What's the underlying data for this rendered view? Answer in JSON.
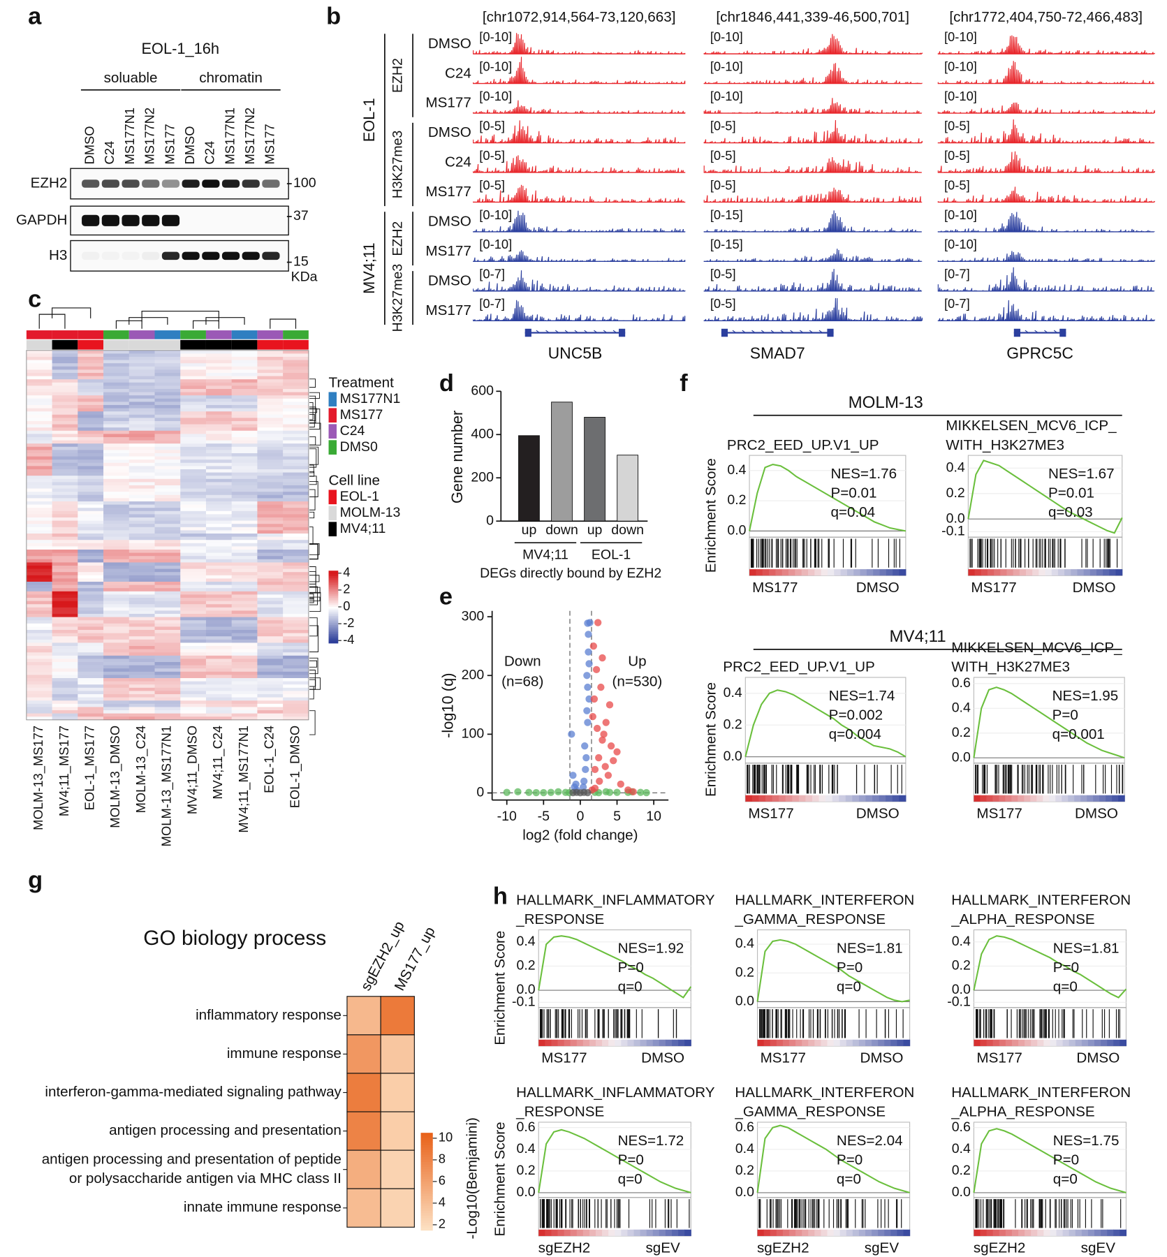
{
  "panel_labels": [
    "a",
    "b",
    "c",
    "d",
    "e",
    "f",
    "g",
    "h"
  ],
  "blot": {
    "title": "EOL-1_16h",
    "fractions": [
      "soluable",
      "chromatin"
    ],
    "lanes": [
      "DMSO",
      "C24",
      "MS177N1",
      "MS177N2",
      "MS177",
      "DMSO",
      "C24",
      "MS177N1",
      "MS177N2",
      "MS177"
    ],
    "proteins": [
      "EZH2",
      "GAPDH",
      "H3"
    ],
    "markers": [
      "100",
      "37",
      "15"
    ],
    "marker_unit": "KDa"
  },
  "tracks": {
    "regions": [
      "[chr1072,914,564-73,120,663]",
      "[chr1846,441,339-46,500,701]",
      "[chr1772,404,750-72,466,483]"
    ],
    "genes": [
      "UNC5B",
      "SMAD7",
      "GPRC5C"
    ],
    "groups": [
      {
        "cell_line": "EOL-1",
        "color": "#e8262b",
        "marks": [
          {
            "name": "EZH2",
            "rows": [
              {
                "label": "DMSO",
                "ranges": [
                  "[0-10]",
                  "[0-10]",
                  "[0-10]"
                ]
              },
              {
                "label": "C24",
                "ranges": [
                  "[0-10]",
                  "[0-10]",
                  "[0-10]"
                ]
              },
              {
                "label": "MS177",
                "ranges": [
                  "[0-10]",
                  "[0-10]",
                  "[0-10]"
                ]
              }
            ]
          },
          {
            "name": "H3K27me3",
            "rows": [
              {
                "label": "DMSO",
                "ranges": [
                  "[0-5]",
                  "[0-5]",
                  "[0-5]"
                ]
              },
              {
                "label": "C24",
                "ranges": [
                  "[0-5]",
                  "[0-5]",
                  "[0-5]"
                ]
              },
              {
                "label": "MS177",
                "ranges": [
                  "[0-5]",
                  "[0-5]",
                  "[0-5]"
                ]
              }
            ]
          }
        ]
      },
      {
        "cell_line": "MV4;11",
        "color": "#2b3f9e",
        "marks": [
          {
            "name": "EZH2",
            "rows": [
              {
                "label": "DMSO",
                "ranges": [
                  "[0-10]",
                  "[0-15]",
                  "[0-10]"
                ]
              },
              {
                "label": "MS177",
                "ranges": [
                  "[0-10]",
                  "[0-15]",
                  "[0-10]"
                ]
              }
            ]
          },
          {
            "name": "H3K27me3",
            "rows": [
              {
                "label": "DMSO",
                "ranges": [
                  "[0-7]",
                  "[0-5]",
                  "[0-7]"
                ]
              },
              {
                "label": "MS177",
                "ranges": [
                  "[0-7]",
                  "[0-5]",
                  "[0-7]"
                ]
              }
            ]
          }
        ]
      }
    ]
  },
  "clustermap": {
    "samples": [
      "MOLM-13_MS177",
      "MV4;11_MS177",
      "EOL-1_MS177",
      "MOLM-13_DMSO",
      "MOLM-13_C24",
      "MOLM-13_MS177N1",
      "MV4;11_DMSO",
      "MV4;11_C24",
      "MV4;11_MS177N1",
      "EOL-1_C24",
      "EOL-1_DMSO"
    ],
    "treatment_title": "Treatment",
    "treatments": [
      "MS177N1",
      "MS177",
      "C24",
      "DMS0"
    ],
    "treatment_colors": [
      "#2f7fc1",
      "#e31a2c",
      "#9b59b6",
      "#3aaa35"
    ],
    "cell_line_title": "Cell line",
    "cell_lines": [
      "EOL-1",
      "MOLM-13",
      "MV4;11"
    ],
    "cell_line_colors": [
      "#e8141e",
      "#d9d9d9",
      "#000000"
    ],
    "scale_ticks": [
      4,
      2,
      0,
      -2,
      -4
    ]
  },
  "gsea_groups": [
    "MOLM-13",
    "MV4;11"
  ],
  "chart_data": [
    {
      "type": "bar",
      "ylabel": "Gene number",
      "xlabel": "DEGs directly bound by EZH2",
      "categories": [
        "up",
        "down",
        "up",
        "down"
      ],
      "groups": [
        "MV4;11",
        "EOL-1"
      ],
      "values": [
        395,
        550,
        480,
        305
      ],
      "colors": [
        "#231f20",
        "#9d9d9d",
        "#6d6e70",
        "#d5d5d5"
      ],
      "ylim": [
        0,
        600
      ],
      "yticks": [
        0,
        200,
        400,
        600
      ]
    },
    {
      "type": "scatter",
      "xlabel": "log2 (fold change)",
      "ylabel": "-log10 (q)",
      "annotations": [
        [
          "Down",
          "(n=68)"
        ],
        [
          "Up",
          "(n=530)"
        ]
      ],
      "xlim": [
        -12,
        12
      ],
      "ylim": [
        -12,
        310
      ],
      "xticks": [
        -10,
        -5,
        0,
        5,
        10
      ],
      "yticks": [
        0,
        100,
        200,
        300
      ],
      "series": [
        {
          "color": "#5cb85c",
          "x": [
            -10,
            -8.5,
            -6,
            -4,
            -3,
            -2,
            -1.5,
            2,
            2.5,
            3.5,
            5,
            6.5,
            7,
            8.2,
            9,
            -7,
            4,
            -5
          ],
          "y": [
            1,
            2,
            0.5,
            1,
            2,
            1,
            0.5,
            1,
            0.5,
            2,
            1,
            1,
            2,
            1,
            0.5,
            1,
            1,
            0.5
          ]
        },
        {
          "color": "#5b7fd1",
          "x": [
            -1.2,
            -0.8,
            -0.5,
            -1,
            0.5,
            0.8,
            1,
            1.2,
            0.9,
            1.1,
            0.6,
            1.3,
            0.7,
            1,
            1.2,
            0.4,
            1.1,
            0.9,
            -0.6,
            1
          ],
          "y": [
            100,
            10,
            5,
            30,
            20,
            60,
            120,
            160,
            200,
            240,
            80,
            290,
            40,
            180,
            220,
            10,
            270,
            140,
            15,
            289
          ]
        },
        {
          "color": "#e84a4a",
          "x": [
            1.6,
            2,
            2.5,
            3,
            3.5,
            4,
            5,
            2.2,
            3.2,
            4.5,
            2.8,
            1.8,
            3.8,
            2.4,
            6.5,
            7.2,
            1.7,
            2.6,
            3,
            4.2,
            5.5,
            2,
            2.3,
            1.9,
            3.4
          ],
          "y": [
            5,
            40,
            60,
            90,
            120,
            150,
            70,
            210,
            100,
            55,
            180,
            250,
            30,
            290,
            5,
            2,
            130,
            20,
            230,
            80,
            15,
            8,
            110,
            160,
            45
          ]
        },
        {
          "color": "#555555",
          "x": [
            -1,
            -0.5,
            0,
            0.5,
            1
          ],
          "y": [
            0.5,
            1,
            0.3,
            1,
            0.5
          ]
        }
      ]
    },
    {
      "type": "line",
      "title": [
        "PRC2_EED_UP.V1_UP"
      ],
      "annotations": [
        "NES=1.76",
        "P=0.01",
        "q=0.04"
      ],
      "ylabel": "Enrichment Score",
      "x_labels": [
        "MS177",
        "DMSO"
      ],
      "color": "#6abf3c",
      "ylim": [
        -0.03,
        0.5
      ],
      "yticks": [
        {
          "value": 0,
          "label": "0.0"
        },
        0.2,
        0.4
      ],
      "values": [
        0,
        0.25,
        0.42,
        0.44,
        0.43,
        0.4,
        0.36,
        0.33,
        0.3,
        0.27,
        0.24,
        0.21,
        0.18,
        0.15,
        0.12,
        0.09,
        0.06,
        0.04,
        0.02,
        0.01,
        0
      ]
    },
    {
      "type": "line",
      "title": [
        "MIKKELSEN_MCV6_ICP_",
        "WITH_H3K27ME3"
      ],
      "annotations": [
        "NES=1.67",
        "P=0.01",
        "q=0.03"
      ],
      "x_labels": [
        "MS177",
        "DMSO"
      ],
      "color": "#6abf3c",
      "ylim": [
        -0.13,
        0.5
      ],
      "yticks": [
        -0.1,
        {
          "value": 0,
          "label": "0.0"
        },
        0.2,
        0.4
      ],
      "values": [
        0,
        0.35,
        0.46,
        0.44,
        0.42,
        0.38,
        0.34,
        0.3,
        0.26,
        0.22,
        0.18,
        0.14,
        0.1,
        0.06,
        0.03,
        0,
        -0.03,
        -0.06,
        -0.09,
        -0.11,
        0.01
      ]
    },
    {
      "type": "line",
      "title": [
        "PRC2_EED_UP.V1_UP"
      ],
      "annotations": [
        "NES=1.74",
        "P=0.002",
        "q=0.004"
      ],
      "ylabel": "Enrichment Score",
      "x_labels": [
        "MS177",
        "DMSO"
      ],
      "color": "#6abf3c",
      "ylim": [
        -0.03,
        0.5
      ],
      "yticks": [
        {
          "value": 0,
          "label": "0.0"
        },
        0.2,
        0.4
      ],
      "values": [
        0,
        0.2,
        0.33,
        0.4,
        0.42,
        0.41,
        0.39,
        0.36,
        0.33,
        0.3,
        0.27,
        0.24,
        0.2,
        0.17,
        0.13,
        0.1,
        0.07,
        0.06,
        0.05,
        0.03,
        0
      ]
    },
    {
      "type": "line",
      "title": [
        "MIKKELSEN_MCV6_ICP_",
        "WITH_H3K27ME3"
      ],
      "annotations": [
        "NES=1.95",
        "P=0",
        "q=0.001"
      ],
      "x_labels": [
        "MS177",
        "DMSO"
      ],
      "color": "#6abf3c",
      "ylim": [
        -0.03,
        0.65
      ],
      "yticks": [
        {
          "value": 0,
          "label": "0.0"
        },
        0.2,
        0.4,
        0.6
      ],
      "values": [
        0,
        0.4,
        0.55,
        0.57,
        0.55,
        0.52,
        0.48,
        0.44,
        0.4,
        0.36,
        0.32,
        0.28,
        0.24,
        0.2,
        0.16,
        0.12,
        0.09,
        0.06,
        0.04,
        0.02,
        0
      ]
    },
    {
      "type": "line",
      "title": [
        "HALLMARK_INFLAMMATORY",
        "_RESPONSE"
      ],
      "annotations": [
        "NES=1.92",
        "P=0",
        "q=0"
      ],
      "ylabel": "Enrichment Score",
      "x_labels": [
        "MS177",
        "DMSO"
      ],
      "color": "#6abf3c",
      "ylim": [
        -0.13,
        0.5
      ],
      "yticks": [
        -0.1,
        {
          "value": 0,
          "label": "0.0"
        },
        0.2,
        0.4
      ],
      "values": [
        0,
        0.38,
        0.44,
        0.45,
        0.44,
        0.42,
        0.39,
        0.36,
        0.33,
        0.3,
        0.27,
        0.24,
        0.2,
        0.17,
        0.13,
        0.1,
        0.06,
        0.02,
        -0.02,
        -0.06,
        0.03
      ]
    },
    {
      "type": "line",
      "title": [
        "HALLMARK_INTERFERON",
        "_GAMMA_RESPONSE"
      ],
      "annotations": [
        "NES=1.81",
        "P=0",
        "q=0"
      ],
      "x_labels": [
        "MS177",
        "DMSO"
      ],
      "color": "#6abf3c",
      "ylim": [
        -0.03,
        0.5
      ],
      "yticks": [
        {
          "value": 0,
          "label": "0.0"
        },
        0.2,
        0.4
      ],
      "values": [
        0,
        0.35,
        0.42,
        0.43,
        0.42,
        0.4,
        0.37,
        0.34,
        0.31,
        0.28,
        0.25,
        0.22,
        0.18,
        0.15,
        0.12,
        0.09,
        0.06,
        0.03,
        0.01,
        0,
        0.01
      ]
    },
    {
      "type": "line",
      "title": [
        "HALLMARK_INTERFERON",
        "_ALPHA_RESPONSE"
      ],
      "annotations": [
        "NES=1.81",
        "P=0",
        "q=0"
      ],
      "x_labels": [
        "MS177",
        "DMSO"
      ],
      "color": "#6abf3c",
      "ylim": [
        -0.13,
        0.5
      ],
      "yticks": [
        -0.1,
        {
          "value": 0,
          "label": "0.0"
        },
        0.2,
        0.4
      ],
      "values": [
        0,
        0.3,
        0.42,
        0.45,
        0.44,
        0.42,
        0.39,
        0.36,
        0.33,
        0.3,
        0.27,
        0.23,
        0.2,
        0.16,
        0.13,
        0.09,
        0.05,
        0.01,
        -0.03,
        -0.06,
        0.01
      ]
    },
    {
      "type": "line",
      "title": [
        "HALLMARK_INFLAMMATORY",
        "_RESPONSE"
      ],
      "annotations": [
        "NES=1.72",
        "P=0",
        "q=0"
      ],
      "ylabel": "Enrichment Score",
      "x_labels": [
        "sgEZH2",
        "sgEV"
      ],
      "color": "#6abf3c",
      "ylim": [
        -0.03,
        0.65
      ],
      "yticks": [
        {
          "value": 0,
          "label": "0.0"
        },
        0.2,
        0.4,
        0.6
      ],
      "values": [
        0,
        0.45,
        0.56,
        0.58,
        0.56,
        0.53,
        0.5,
        0.46,
        0.42,
        0.38,
        0.34,
        0.3,
        0.26,
        0.22,
        0.18,
        0.14,
        0.1,
        0.07,
        0.04,
        0.02,
        0
      ]
    },
    {
      "type": "line",
      "title": [
        "HALLMARK_INTERFERON",
        "_GAMMA_RESPONSE"
      ],
      "annotations": [
        "NES=2.04",
        "P=0",
        "q=0"
      ],
      "x_labels": [
        "sgEZH2",
        "sgEV"
      ],
      "color": "#6abf3c",
      "ylim": [
        -0.03,
        0.65
      ],
      "yticks": [
        {
          "value": 0,
          "label": "0.0"
        },
        0.2,
        0.4,
        0.6
      ],
      "values": [
        0,
        0.5,
        0.6,
        0.62,
        0.6,
        0.56,
        0.52,
        0.48,
        0.44,
        0.4,
        0.35,
        0.3,
        0.26,
        0.22,
        0.18,
        0.14,
        0.1,
        0.07,
        0.04,
        0.02,
        0
      ]
    },
    {
      "type": "line",
      "title": [
        "HALLMARK_INTERFERON",
        "_ALPHA_RESPONSE"
      ],
      "annotations": [
        "NES=1.75",
        "P=0",
        "q=0"
      ],
      "x_labels": [
        "sgEZH2",
        "sgEV"
      ],
      "color": "#6abf3c",
      "ylim": [
        -0.03,
        0.65
      ],
      "yticks": [
        {
          "value": 0,
          "label": "0.0"
        },
        0.2,
        0.4,
        0.6
      ],
      "values": [
        0,
        0.45,
        0.57,
        0.59,
        0.57,
        0.54,
        0.5,
        0.46,
        0.42,
        0.38,
        0.34,
        0.3,
        0.26,
        0.22,
        0.18,
        0.14,
        0.1,
        0.07,
        0.04,
        0.02,
        0
      ]
    },
    {
      "type": "heatmap",
      "title": "GO biology process",
      "columns": [
        "sgEZH2_up",
        "MS177_up"
      ],
      "rows": [
        [
          "inflammatory response"
        ],
        [
          "immune response"
        ],
        [
          "interferon-gamma-mediated signaling pathway"
        ],
        [
          "antigen processing and presentation"
        ],
        [
          "antigen processing and presentation of peptide",
          "or polysaccharide antigen via MHC class II"
        ],
        [
          "innate immune response"
        ]
      ],
      "values": [
        [
          4.5,
          8.8
        ],
        [
          6.8,
          3.5
        ],
        [
          8.6,
          3.0
        ],
        [
          8.2,
          3.0
        ],
        [
          5.2,
          2.6
        ],
        [
          4.2,
          2.6
        ]
      ],
      "colorbar_label": "-Log10(Bemjamini)",
      "colorbar_ticks": [
        10,
        8,
        6,
        4,
        2
      ],
      "clim": [
        1.5,
        10.5
      ],
      "colormap": [
        "#fde3c6",
        "#e8621a"
      ]
    }
  ]
}
